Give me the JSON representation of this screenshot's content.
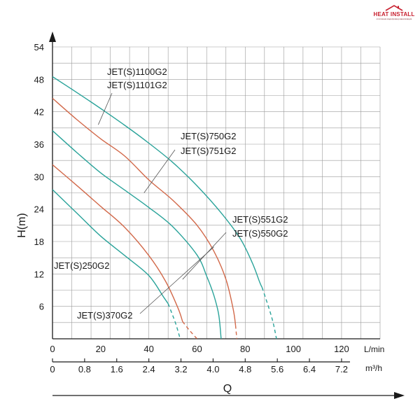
{
  "logo": {
    "name": "HEAT INSTALL",
    "tagline": "отопление водопровод канализация"
  },
  "colors": {
    "grid": "#9a9a9a",
    "axis": "#1a1a1a",
    "teal": "#2aa39a",
    "orange": "#d2694a",
    "leader": "#555555"
  },
  "chart_data": {
    "type": "line",
    "title": "",
    "xlabel": "Q",
    "ylabel": "H(m)",
    "x_unit_primary": "L/min",
    "x_unit_secondary": "m³/h",
    "xlim": [
      0,
      136
    ],
    "ylim": [
      0,
      54
    ],
    "grid": true,
    "y_ticks": [
      "6",
      "12",
      "18",
      "24",
      "30",
      "36",
      "42",
      "48",
      "54"
    ],
    "x_ticks_lmin": [
      "0",
      "20",
      "40",
      "60",
      "80",
      "100",
      "120"
    ],
    "x_ticks_m3h": [
      "0",
      "0.8",
      "1.6",
      "2.4",
      "3.2",
      "4.0",
      "4.8",
      "5.6",
      "6.4",
      "7.2"
    ],
    "series": [
      {
        "name": "JET(S)1100G2 / JET(S)1101G2",
        "color": "teal",
        "points": [
          [
            0,
            48.5
          ],
          [
            10,
            45.6
          ],
          [
            20,
            42.6
          ],
          [
            30,
            39.5
          ],
          [
            40,
            36.2
          ],
          [
            50,
            32.6
          ],
          [
            60,
            28.3
          ],
          [
            70,
            23.3
          ],
          [
            78,
            18.5
          ],
          [
            83,
            14
          ],
          [
            86,
            10.5
          ],
          [
            87,
            9.5
          ]
        ],
        "dashed": [
          [
            87,
            9.5
          ],
          [
            91,
            4
          ],
          [
            93,
            0
          ]
        ]
      },
      {
        "name": "JET(S)750G2 / JET(S)751G2",
        "color": "orange",
        "points": [
          [
            0,
            44.5
          ],
          [
            10,
            40.6
          ],
          [
            20,
            37
          ],
          [
            30,
            33.8
          ],
          [
            40,
            29.4
          ],
          [
            50,
            25.6
          ],
          [
            60,
            21
          ],
          [
            67,
            16.2
          ],
          [
            72,
            11
          ],
          [
            75,
            5.5
          ],
          [
            76,
            2.5
          ]
        ],
        "dashed": [
          [
            76,
            2.5
          ],
          [
            76.5,
            0
          ]
        ]
      },
      {
        "name": "JET(S)551G2 / JET(S)550G2",
        "color": "teal",
        "points": [
          [
            0,
            38.5
          ],
          [
            10,
            34.5
          ],
          [
            20,
            30.7
          ],
          [
            30,
            27.5
          ],
          [
            40,
            24.3
          ],
          [
            50,
            20.7
          ],
          [
            60,
            15.5
          ],
          [
            64,
            11.6
          ],
          [
            67,
            8
          ],
          [
            69,
            4.5
          ],
          [
            70,
            0
          ]
        ]
      },
      {
        "name": "JET(S)370G2",
        "color": "orange",
        "points": [
          [
            0,
            32.2
          ],
          [
            10,
            28.4
          ],
          [
            20,
            24.5
          ],
          [
            30,
            20.6
          ],
          [
            40,
            15.4
          ],
          [
            47,
            10.6
          ],
          [
            52,
            5.8
          ],
          [
            54,
            3.2
          ]
        ],
        "dashed": [
          [
            54,
            3.2
          ],
          [
            57,
            1.5
          ],
          [
            60,
            0
          ]
        ]
      },
      {
        "name": "JET(S)250G2",
        "color": "teal",
        "points": [
          [
            0,
            27.6
          ],
          [
            10,
            23.3
          ],
          [
            20,
            19
          ],
          [
            30,
            15.4
          ],
          [
            40,
            11.7
          ],
          [
            46,
            7.8
          ],
          [
            48,
            6.5
          ]
        ],
        "dashed": [
          [
            48,
            6.5
          ],
          [
            51,
            3
          ],
          [
            53,
            0
          ]
        ]
      }
    ],
    "annotations": [
      {
        "lines": [
          "JET(S)1100G2",
          "JET(S)1101G2"
        ],
        "leader_target": [
          19,
          39.6
        ]
      },
      {
        "lines": [
          "JET(S)750G2",
          "JET(S)751G2"
        ],
        "leader_target": [
          38,
          27
        ]
      },
      {
        "lines": [
          "JET(S)551G2",
          "JET(S)550G2"
        ],
        "leader_target": [
          54,
          11
        ]
      },
      {
        "lines": [
          "JET(S)250G2"
        ],
        "leader_target": null
      },
      {
        "lines": [
          "JET(S)370G2"
        ],
        "leader_target": null
      }
    ]
  }
}
